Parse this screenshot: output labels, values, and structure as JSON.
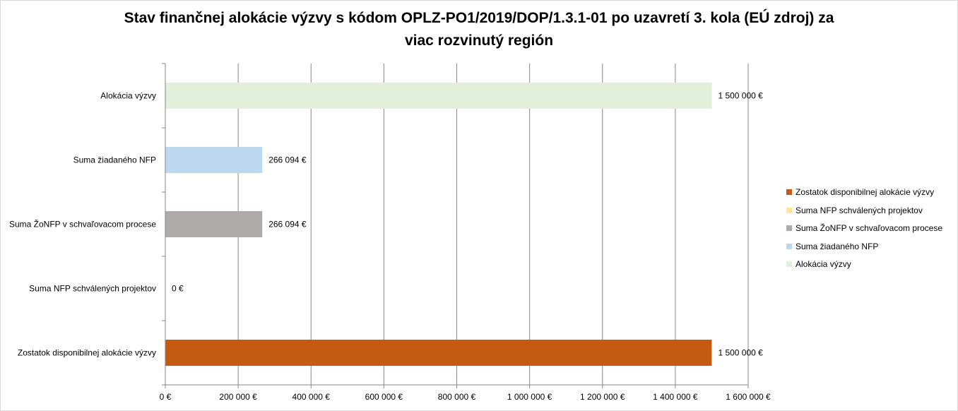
{
  "chart_data": {
    "type": "bar",
    "orientation": "horizontal",
    "title_line1": "Stav finančnej alokácie výzvy s kódom OPLZ-PO1/2019/DOP/1.3.1-01 po uzavretí 3. kola (EÚ zdroj) za",
    "title_line2": "viac rozvinutý región",
    "categories": [
      "Alokácia výzvy",
      "Suma žiadaného NFP",
      "Suma ŽoNFP v schvaľovacom procese",
      "Suma NFP schválených projektov",
      "Zostatok disponibilnej alokácie výzvy"
    ],
    "values": [
      1500000,
      266094,
      266094,
      0,
      1500000
    ],
    "data_labels": [
      "1 500 000 €",
      "266 094 €",
      "266 094 €",
      "0 €",
      "1 500 000 €"
    ],
    "colors": [
      "#e2efda",
      "#bdd7ee",
      "#aeaaaa",
      "#ffe699",
      "#c55a11"
    ],
    "xlim": [
      0,
      1600000
    ],
    "x_ticks": [
      0,
      200000,
      400000,
      600000,
      800000,
      1000000,
      1200000,
      1400000,
      1600000
    ],
    "x_tick_labels": [
      "0 €",
      "200 000 €",
      "400 000 €",
      "600 000 €",
      "800 000 €",
      "1 000 000 €",
      "1 200 000 €",
      "1 400 000 €",
      "1 600 000 €"
    ],
    "grid": true,
    "legend_position": "right",
    "legend": [
      {
        "label": "Zostatok disponibilnej alokácie výzvy",
        "color": "#c55a11"
      },
      {
        "label": "Suma NFP schválených projektov",
        "color": "#ffe699"
      },
      {
        "label": "Suma ŽoNFP v schvaľovacom procese",
        "color": "#aeaaaa"
      },
      {
        "label": "Suma žiadaného NFP",
        "color": "#bdd7ee"
      },
      {
        "label": "Alokácia výzvy",
        "color": "#e2efda"
      }
    ]
  }
}
